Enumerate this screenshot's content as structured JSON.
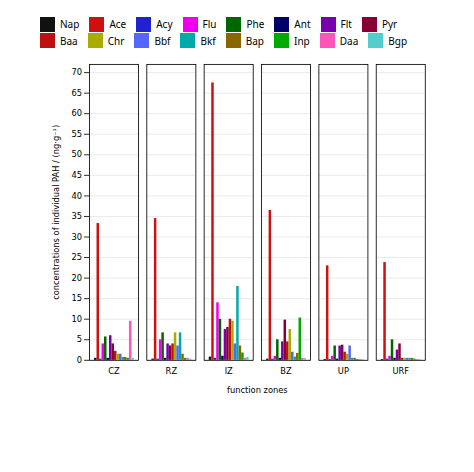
{
  "chart_data": {
    "type": "bar",
    "xlabel": "function zones",
    "ylabel": "concentrations of individual PAH / (ng·g⁻¹)",
    "categories": [
      "CZ",
      "RZ",
      "IZ",
      "BZ",
      "UP",
      "URF"
    ],
    "series": [
      {
        "name": "Nap",
        "color": "#111111",
        "values": [
          0.5,
          0.3,
          0.8,
          0.3,
          0.2,
          0.2
        ]
      },
      {
        "name": "Ace",
        "color": "#cc1111",
        "values": [
          33.3,
          34.5,
          67.5,
          36.5,
          23.0,
          23.8
        ]
      },
      {
        "name": "Acy",
        "color": "#2222cc",
        "values": [
          0.3,
          0.3,
          0.5,
          0.3,
          0.2,
          0.3
        ]
      },
      {
        "name": "Flu",
        "color": "#ee00ee",
        "values": [
          4.0,
          5.0,
          14.0,
          1.0,
          1.0,
          1.0
        ]
      },
      {
        "name": "Phe",
        "color": "#006600",
        "values": [
          5.7,
          6.7,
          10.0,
          5.0,
          3.5,
          5.0
        ]
      },
      {
        "name": "Ant",
        "color": "#000066",
        "values": [
          0.5,
          0.5,
          1.0,
          0.5,
          0.3,
          0.5
        ]
      },
      {
        "name": "Flt",
        "color": "#7700aa",
        "values": [
          6.0,
          4.0,
          7.5,
          4.5,
          3.5,
          2.5
        ]
      },
      {
        "name": "Pyr",
        "color": "#880033",
        "values": [
          4.0,
          3.5,
          8.0,
          9.8,
          3.7,
          4.0
        ]
      },
      {
        "name": "Baa",
        "color": "#bb1111",
        "values": [
          2.2,
          4.0,
          10.0,
          4.5,
          2.0,
          0.5
        ]
      },
      {
        "name": "Chr",
        "color": "#aaaa00",
        "values": [
          1.5,
          6.7,
          9.5,
          7.5,
          1.5,
          0.5
        ]
      },
      {
        "name": "Bbf",
        "color": "#5566ff",
        "values": [
          1.5,
          3.5,
          4.0,
          2.0,
          3.5,
          0.5
        ]
      },
      {
        "name": "Bkf",
        "color": "#00aaaa",
        "values": [
          0.7,
          6.7,
          18.0,
          0.8,
          0.5,
          0.5
        ]
      },
      {
        "name": "Bap",
        "color": "#886600",
        "values": [
          0.7,
          1.5,
          3.5,
          1.7,
          0.5,
          0.5
        ]
      },
      {
        "name": "Inp",
        "color": "#00aa00",
        "values": [
          0.5,
          0.5,
          1.8,
          10.3,
          0.2,
          0.3
        ]
      },
      {
        "name": "Daa",
        "color": "#ff55bb",
        "values": [
          9.5,
          0.5,
          0.5,
          0.5,
          0.2,
          0.2
        ]
      },
      {
        "name": "Bgp",
        "color": "#55cccc",
        "values": [
          0.5,
          0.3,
          0.7,
          0.4,
          0.2,
          0.2
        ]
      }
    ],
    "ylim": [
      0,
      72
    ],
    "yticks": [
      0,
      5,
      10,
      15,
      20,
      25,
      30,
      35,
      40,
      45,
      50,
      55,
      60,
      65,
      70
    ],
    "grid": true,
    "legend": "top"
  }
}
